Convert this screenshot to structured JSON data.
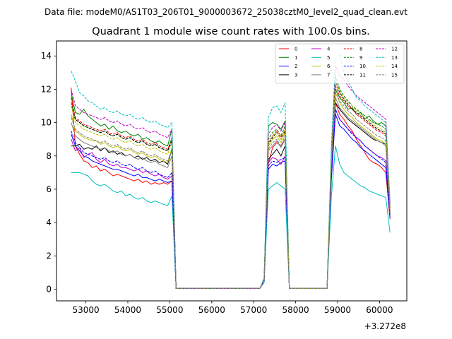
{
  "header": {
    "file_text": "Data file: modeM0/AS1T03_206T01_9000003672_25038cztM0_level2_quad_clean.evt"
  },
  "chart_data": {
    "type": "line",
    "title": "Quadrant 1 module wise count rates with 100.0s bins.",
    "xlabel": "",
    "ylabel": "",
    "x_offset_label": "+3.272e8",
    "xlim": [
      52300,
      60650
    ],
    "ylim": [
      -0.7,
      14.9
    ],
    "x_ticks": [
      53000,
      54000,
      55000,
      56000,
      57000,
      58000,
      59000,
      60000
    ],
    "x_tick_labels": [
      "53000",
      "54000",
      "55000",
      "56000",
      "57000",
      "58000",
      "59000",
      "60000"
    ],
    "y_ticks": [
      0,
      2,
      4,
      6,
      8,
      10,
      12,
      14
    ],
    "y_tick_labels": [
      "0",
      "2",
      "4",
      "6",
      "8",
      "10",
      "12",
      "14"
    ],
    "grid": false,
    "legend_position": "top-right",
    "x": [
      52650,
      52750,
      52850,
      52950,
      53050,
      53150,
      53250,
      53350,
      53450,
      53550,
      53650,
      53750,
      53850,
      53950,
      54050,
      54150,
      54250,
      54350,
      54450,
      54550,
      54650,
      54750,
      54850,
      54950,
      55050,
      55150,
      57150,
      57250,
      57350,
      57450,
      57550,
      57650,
      57750,
      57850,
      58750,
      58850,
      58950,
      59050,
      59150,
      59250,
      59350,
      59450,
      59550,
      59650,
      59750,
      59850,
      59950,
      60050,
      60150,
      60250
    ],
    "series": [
      {
        "name": "0",
        "color": "#ff0000",
        "dash": "solid",
        "values": [
          12.1,
          8.6,
          8.1,
          7.7,
          7.6,
          7.3,
          7.4,
          7.1,
          7.2,
          7.0,
          6.8,
          6.9,
          6.8,
          6.7,
          6.6,
          6.5,
          6.6,
          6.4,
          6.5,
          6.3,
          6.4,
          6.3,
          6.4,
          6.3,
          6.5,
          0.05,
          0.05,
          0.5,
          7.5,
          8.5,
          8.8,
          8.6,
          9.0,
          0.05,
          0.05,
          7.0,
          11.2,
          10.5,
          10.2,
          9.8,
          9.5,
          9.0,
          8.6,
          8.2,
          7.8,
          7.6,
          7.5,
          7.3,
          7.0,
          4.2
        ]
      },
      {
        "name": "1",
        "color": "#008000",
        "dash": "solid",
        "values": [
          11.8,
          10.6,
          10.5,
          10.8,
          10.4,
          10.2,
          10.0,
          9.8,
          9.9,
          9.6,
          9.8,
          9.5,
          9.4,
          9.5,
          9.3,
          9.2,
          9.3,
          9.0,
          9.1,
          8.9,
          8.8,
          8.9,
          8.7,
          8.6,
          9.6,
          0.05,
          0.05,
          0.6,
          9.8,
          10.0,
          9.9,
          9.6,
          10.1,
          0.05,
          0.05,
          8.0,
          12.0,
          11.5,
          11.2,
          10.8,
          10.9,
          10.5,
          10.6,
          10.2,
          10.4,
          10.1,
          9.9,
          10.0,
          9.8,
          5.0
        ]
      },
      {
        "name": "2",
        "color": "#0000ff",
        "dash": "solid",
        "values": [
          9.3,
          8.6,
          8.3,
          8.0,
          7.9,
          7.7,
          7.6,
          7.5,
          7.4,
          7.3,
          7.2,
          7.2,
          7.1,
          7.0,
          6.9,
          6.8,
          6.9,
          6.7,
          6.7,
          6.6,
          6.5,
          6.6,
          6.5,
          6.4,
          6.5,
          0.05,
          0.05,
          0.5,
          7.2,
          7.5,
          7.4,
          7.6,
          7.7,
          0.05,
          0.05,
          6.5,
          10.5,
          9.8,
          9.6,
          9.3,
          9.0,
          8.8,
          8.5,
          8.3,
          8.1,
          7.9,
          7.7,
          7.5,
          7.3,
          4.3
        ]
      },
      {
        "name": "3",
        "color": "#000000",
        "dash": "solid",
        "values": [
          8.6,
          8.6,
          8.7,
          8.4,
          8.5,
          8.4,
          8.6,
          8.3,
          8.5,
          8.2,
          8.3,
          8.1,
          8.2,
          8.0,
          8.1,
          7.9,
          8.0,
          7.8,
          7.9,
          7.7,
          7.8,
          7.6,
          7.7,
          7.5,
          8.4,
          0.05,
          0.05,
          0.5,
          7.8,
          8.1,
          8.4,
          8.0,
          8.6,
          0.05,
          0.05,
          7.2,
          11.2,
          10.8,
          10.5,
          10.2,
          10.0,
          9.8,
          9.6,
          9.4,
          9.2,
          9.0,
          8.9,
          8.8,
          8.7,
          4.6
        ]
      },
      {
        "name": "4",
        "color": "#c000c0",
        "dash": "solid",
        "values": [
          9.0,
          8.3,
          8.5,
          7.9,
          8.1,
          8.2,
          7.8,
          7.6,
          7.8,
          7.5,
          7.4,
          7.5,
          7.3,
          7.3,
          7.2,
          7.1,
          7.2,
          7.0,
          7.1,
          6.9,
          6.8,
          6.9,
          6.7,
          6.6,
          6.8,
          0.05,
          0.05,
          0.5,
          7.6,
          7.9,
          7.8,
          7.5,
          8.0,
          0.05,
          0.05,
          6.8,
          10.8,
          10.2,
          9.9,
          9.6,
          9.4,
          9.1,
          8.9,
          8.6,
          8.4,
          8.2,
          8.0,
          7.9,
          7.7,
          4.4
        ]
      },
      {
        "name": "5",
        "color": "#00bfbf",
        "dash": "solid",
        "values": [
          7.0,
          7.0,
          7.0,
          6.9,
          6.8,
          6.5,
          6.3,
          6.2,
          6.3,
          6.1,
          5.9,
          5.8,
          5.9,
          5.6,
          5.7,
          5.5,
          5.4,
          5.5,
          5.3,
          5.2,
          5.3,
          5.2,
          5.1,
          5.0,
          5.6,
          0.05,
          0.05,
          0.4,
          6.0,
          6.2,
          6.4,
          6.2,
          6.0,
          0.05,
          0.05,
          5.5,
          8.6,
          7.5,
          7.0,
          6.8,
          6.6,
          6.4,
          6.2,
          6.1,
          5.9,
          5.8,
          5.7,
          5.6,
          5.5,
          3.4
        ]
      },
      {
        "name": "6",
        "color": "#bfbf00",
        "dash": "solid",
        "values": [
          10.5,
          9.5,
          9.3,
          9.1,
          9.0,
          8.9,
          8.9,
          8.7,
          8.8,
          8.6,
          8.5,
          8.6,
          8.4,
          8.3,
          8.4,
          8.2,
          8.1,
          8.2,
          8.0,
          7.9,
          8.0,
          7.8,
          7.7,
          7.6,
          8.5,
          0.05,
          0.05,
          0.5,
          8.6,
          9.0,
          9.2,
          8.8,
          9.4,
          0.05,
          0.05,
          7.6,
          11.8,
          11.2,
          10.8,
          10.5,
          10.3,
          10.0,
          9.8,
          9.6,
          9.4,
          9.2,
          9.0,
          8.9,
          8.7,
          4.7
        ]
      },
      {
        "name": "7",
        "color": "#808080",
        "dash": "solid",
        "values": [
          10.0,
          9.2,
          9.0,
          8.8,
          8.7,
          8.6,
          8.5,
          8.4,
          8.5,
          8.3,
          8.2,
          8.3,
          8.1,
          8.0,
          8.1,
          7.9,
          7.8,
          7.9,
          7.7,
          7.6,
          7.7,
          7.5,
          7.4,
          7.3,
          8.0,
          0.05,
          0.05,
          0.5,
          8.3,
          8.6,
          8.9,
          8.5,
          9.0,
          0.05,
          0.05,
          7.4,
          11.5,
          10.9,
          10.6,
          10.3,
          10.1,
          9.9,
          9.7,
          9.5,
          9.3,
          9.1,
          8.9,
          8.8,
          8.6,
          4.5
        ]
      },
      {
        "name": "8",
        "color": "#ff0000",
        "dash": "dashed",
        "values": [
          11.5,
          10.3,
          10.1,
          9.9,
          9.8,
          9.7,
          9.6,
          9.5,
          9.6,
          9.4,
          9.3,
          9.4,
          9.2,
          9.1,
          9.2,
          9.0,
          8.9,
          9.0,
          8.8,
          8.7,
          8.8,
          8.6,
          8.5,
          8.4,
          9.0,
          0.05,
          0.05,
          0.6,
          8.8,
          9.2,
          9.5,
          9.1,
          9.6,
          0.05,
          0.05,
          7.8,
          12.2,
          11.6,
          11.3,
          11.0,
          10.8,
          10.5,
          10.3,
          10.1,
          9.9,
          9.7,
          9.5,
          9.4,
          9.2,
          4.8
        ]
      },
      {
        "name": "9",
        "color": "#008000",
        "dash": "dashed",
        "values": [
          11.2,
          10.2,
          10.0,
          9.8,
          9.7,
          9.6,
          9.5,
          9.4,
          9.5,
          9.3,
          9.2,
          9.3,
          9.1,
          9.0,
          9.1,
          8.9,
          8.8,
          8.9,
          8.7,
          8.6,
          8.7,
          8.5,
          8.4,
          8.3,
          9.1,
          0.05,
          0.05,
          0.6,
          9.0,
          9.4,
          9.6,
          9.2,
          9.8,
          0.05,
          0.05,
          8.0,
          12.8,
          12.0,
          11.6,
          11.3,
          11.0,
          10.8,
          10.6,
          10.4,
          10.2,
          10.0,
          9.9,
          9.8,
          9.6,
          5.0
        ]
      },
      {
        "name": "10",
        "color": "#0000ff",
        "dash": "dashed",
        "values": [
          9.5,
          8.8,
          8.5,
          8.2,
          8.1,
          8.0,
          7.9,
          7.8,
          7.9,
          7.7,
          7.6,
          7.7,
          7.5,
          7.4,
          7.5,
          7.3,
          7.2,
          7.3,
          7.1,
          7.0,
          7.1,
          6.9,
          6.8,
          6.7,
          7.0,
          0.05,
          0.05,
          0.5,
          7.4,
          7.7,
          7.6,
          7.8,
          7.9,
          0.05,
          0.05,
          6.8,
          10.8,
          10.2,
          9.9,
          9.6,
          9.3,
          9.1,
          8.9,
          8.6,
          8.4,
          8.2,
          8.0,
          7.8,
          7.6,
          4.4
        ]
      },
      {
        "name": "11",
        "color": "#000000",
        "dash": "dashed",
        "values": [
          11.0,
          10.2,
          10.0,
          9.8,
          9.7,
          9.6,
          9.5,
          9.4,
          9.5,
          9.3,
          9.2,
          9.3,
          9.1,
          9.0,
          9.1,
          8.9,
          8.8,
          8.9,
          8.7,
          8.6,
          8.7,
          8.5,
          8.4,
          8.3,
          8.9,
          0.05,
          0.05,
          0.6,
          8.7,
          9.1,
          9.4,
          9.0,
          9.5,
          0.05,
          0.05,
          7.8,
          12.5,
          11.8,
          11.4,
          11.1,
          10.8,
          10.6,
          10.4,
          10.2,
          10.0,
          9.8,
          9.6,
          9.5,
          9.3,
          4.9
        ]
      },
      {
        "name": "12",
        "color": "#c000c0",
        "dash": "dashed",
        "values": [
          12.0,
          11.0,
          10.8,
          10.6,
          10.5,
          10.4,
          10.3,
          10.2,
          10.3,
          10.1,
          10.0,
          10.1,
          9.9,
          9.8,
          9.9,
          9.7,
          9.6,
          9.7,
          9.5,
          9.4,
          9.5,
          9.3,
          9.2,
          9.1,
          9.6,
          0.05,
          0.05,
          0.6,
          9.3,
          9.7,
          9.9,
          9.5,
          10.0,
          0.05,
          0.05,
          8.2,
          13.4,
          12.8,
          12.6,
          12.2,
          11.9,
          11.6,
          11.4,
          11.2,
          11.0,
          10.8,
          10.6,
          10.4,
          10.2,
          5.2
        ]
      },
      {
        "name": "13",
        "color": "#00bfbf",
        "dash": "dashed",
        "values": [
          13.1,
          12.5,
          11.8,
          11.6,
          11.3,
          11.2,
          11.0,
          10.8,
          10.9,
          10.7,
          10.6,
          10.7,
          10.5,
          10.4,
          10.5,
          10.3,
          10.2,
          10.3,
          10.1,
          10.0,
          10.1,
          9.9,
          9.8,
          9.7,
          10.0,
          0.05,
          0.05,
          0.7,
          10.3,
          10.9,
          11.0,
          10.6,
          11.2,
          0.05,
          0.05,
          8.5,
          13.8,
          14.1,
          13.0,
          12.5,
          12.0,
          11.5,
          11.3,
          11.0,
          10.8,
          10.6,
          10.4,
          10.2,
          10.0,
          5.3
        ]
      },
      {
        "name": "14",
        "color": "#bfbf00",
        "dash": "dashed",
        "values": [
          11.0,
          10.0,
          9.8,
          9.6,
          9.5,
          9.4,
          9.3,
          9.2,
          9.3,
          9.1,
          9.0,
          9.1,
          8.9,
          8.8,
          8.9,
          8.7,
          8.6,
          8.7,
          8.5,
          8.4,
          8.5,
          8.3,
          8.2,
          8.1,
          8.8,
          0.05,
          0.05,
          0.6,
          8.8,
          9.2,
          9.4,
          9.0,
          9.6,
          0.05,
          0.05,
          7.8,
          12.5,
          11.9,
          11.5,
          11.2,
          11.0,
          10.7,
          10.5,
          10.3,
          10.1,
          9.9,
          9.7,
          9.6,
          9.4,
          4.9
        ]
      },
      {
        "name": "15",
        "color": "#808080",
        "dash": "dashed",
        "values": [
          10.3,
          9.6,
          9.4,
          9.2,
          9.1,
          9.0,
          8.9,
          8.8,
          8.9,
          8.7,
          8.6,
          8.7,
          8.5,
          8.4,
          8.5,
          8.3,
          8.2,
          8.3,
          8.1,
          8.0,
          8.1,
          7.9,
          7.8,
          7.7,
          8.3,
          0.05,
          0.05,
          0.5,
          8.4,
          8.8,
          9.0,
          8.6,
          9.2,
          0.05,
          0.05,
          7.5,
          11.9,
          11.3,
          11.0,
          10.7,
          10.5,
          10.2,
          10.0,
          9.8,
          9.6,
          9.4,
          9.2,
          9.1,
          8.9,
          4.6
        ]
      }
    ]
  }
}
